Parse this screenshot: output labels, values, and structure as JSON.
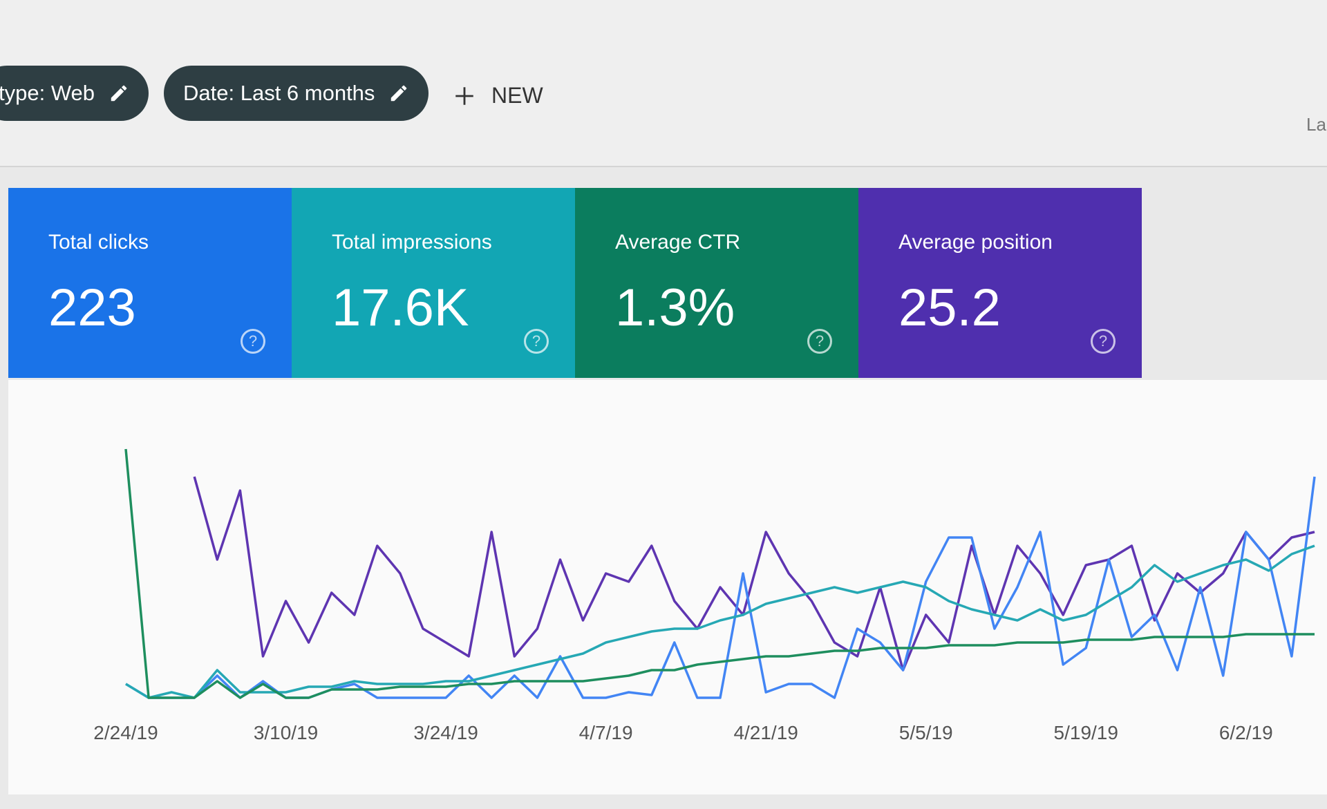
{
  "toolbar": {
    "filters": [
      "type: Web",
      "Date: Last 6 months"
    ],
    "new_button": "NEW",
    "right_text": "La"
  },
  "cards": [
    {
      "title": "Total clicks",
      "value": "223",
      "color": "#1a73e8"
    },
    {
      "title": "Total impressions",
      "value": "17.6K",
      "color": "#12a6b4"
    },
    {
      "title": "Average CTR",
      "value": "1.3%",
      "color": "#0b7d5e"
    },
    {
      "title": "Average position",
      "value": "25.2",
      "color": "#4f2fae"
    }
  ],
  "chart_data": {
    "type": "line",
    "categories": [
      "2/24/19",
      null,
      null,
      null,
      null,
      null,
      null,
      "3/10/19",
      null,
      null,
      null,
      null,
      null,
      null,
      "3/24/19",
      null,
      null,
      null,
      null,
      null,
      null,
      "4/7/19",
      null,
      null,
      null,
      null,
      null,
      null,
      "4/21/19",
      null,
      null,
      null,
      null,
      null,
      null,
      "5/5/19",
      null,
      null,
      null,
      null,
      null,
      null,
      "5/19/19",
      null,
      null,
      null,
      null,
      null,
      null,
      "6/2/19",
      null,
      null,
      null
    ],
    "ylim": [
      0,
      100
    ],
    "series": [
      {
        "color": "#5e35b1",
        "values": [
          null,
          null,
          null,
          80,
          50,
          75,
          15,
          35,
          20,
          38,
          30,
          55,
          45,
          25,
          20,
          15,
          60,
          15,
          25,
          50,
          28,
          45,
          42,
          55,
          35,
          25,
          40,
          30,
          60,
          45,
          35,
          20,
          15,
          40,
          10,
          30,
          20,
          55,
          30,
          55,
          45,
          30,
          48,
          50,
          55,
          28,
          45,
          38,
          45,
          60,
          50,
          58,
          60
        ]
      },
      {
        "color": "#4285f4",
        "values": [
          5,
          0,
          0,
          0,
          8,
          0,
          6,
          0,
          0,
          3,
          5,
          0,
          0,
          0,
          0,
          8,
          0,
          8,
          0,
          15,
          0,
          0,
          2,
          1,
          20,
          0,
          0,
          45,
          2,
          5,
          5,
          0,
          25,
          20,
          10,
          42,
          58,
          58,
          25,
          40,
          60,
          12,
          18,
          50,
          22,
          30,
          10,
          40,
          8,
          60,
          50,
          15,
          80
        ]
      },
      {
        "color": "#26a8b4",
        "values": [
          5,
          0,
          2,
          0,
          10,
          2,
          2,
          2,
          4,
          4,
          6,
          5,
          5,
          5,
          6,
          6,
          8,
          10,
          12,
          14,
          16,
          20,
          22,
          24,
          25,
          25,
          28,
          30,
          34,
          36,
          38,
          40,
          38,
          40,
          42,
          40,
          35,
          32,
          30,
          28,
          32,
          28,
          30,
          35,
          40,
          48,
          42,
          45,
          48,
          50,
          46,
          52,
          55
        ]
      },
      {
        "color": "#1e8e5e",
        "values": [
          90,
          0,
          0,
          0,
          6,
          0,
          5,
          0,
          0,
          3,
          3,
          3,
          4,
          4,
          4,
          5,
          5,
          6,
          6,
          6,
          6,
          7,
          8,
          10,
          10,
          12,
          13,
          14,
          15,
          15,
          16,
          17,
          17,
          18,
          18,
          18,
          19,
          19,
          19,
          20,
          20,
          20,
          21,
          21,
          21,
          22,
          22,
          22,
          22,
          23,
          23,
          23,
          23
        ]
      }
    ]
  }
}
